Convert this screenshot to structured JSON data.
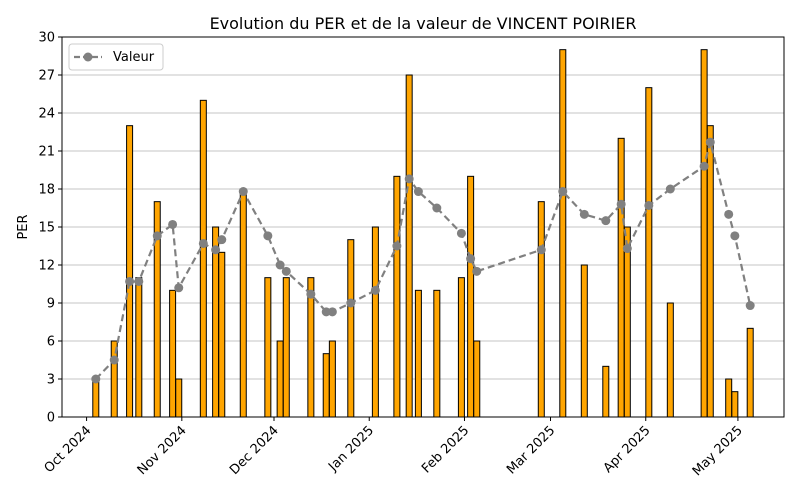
{
  "chart_data": {
    "type": "bar+line",
    "title": "Evolution du PER et de la valeur de VINCENT POIRIER",
    "xlabel": "",
    "ylabel": "PER",
    "ylim": [
      0,
      30
    ],
    "yticks": [
      0,
      3,
      6,
      9,
      12,
      15,
      18,
      21,
      24,
      27,
      30
    ],
    "xlim": [
      "2024-09-23",
      "2025-05-16"
    ],
    "xticks": [
      {
        "date": "2024-10-01",
        "label": "Oct 2024"
      },
      {
        "date": "2024-11-01",
        "label": "Nov 2024"
      },
      {
        "date": "2024-12-01",
        "label": "Dec 2024"
      },
      {
        "date": "2025-01-01",
        "label": "Jan 2025"
      },
      {
        "date": "2025-02-01",
        "label": "Feb 2025"
      },
      {
        "date": "2025-03-01",
        "label": "Mar 2025"
      },
      {
        "date": "2025-04-01",
        "label": "Apr 2025"
      },
      {
        "date": "2025-05-01",
        "label": "May 2025"
      }
    ],
    "grid": "horizontal",
    "legend_position": "top-left",
    "bar_color": "#FFA500",
    "line_color": "#808080",
    "bars": [
      {
        "date": "2024-10-04",
        "per": 3
      },
      {
        "date": "2024-10-10",
        "per": 6
      },
      {
        "date": "2024-10-15",
        "per": 23
      },
      {
        "date": "2024-10-18",
        "per": 11
      },
      {
        "date": "2024-10-24",
        "per": 17
      },
      {
        "date": "2024-10-29",
        "per": 10
      },
      {
        "date": "2024-10-31",
        "per": 3
      },
      {
        "date": "2024-11-08",
        "per": 25
      },
      {
        "date": "2024-11-12",
        "per": 15
      },
      {
        "date": "2024-11-14",
        "per": 13
      },
      {
        "date": "2024-11-21",
        "per": 18
      },
      {
        "date": "2024-11-29",
        "per": 11
      },
      {
        "date": "2024-12-03",
        "per": 6
      },
      {
        "date": "2024-12-05",
        "per": 11
      },
      {
        "date": "2024-12-13",
        "per": 11
      },
      {
        "date": "2024-12-18",
        "per": 5
      },
      {
        "date": "2024-12-20",
        "per": 6
      },
      {
        "date": "2024-12-26",
        "per": 14
      },
      {
        "date": "2025-01-03",
        "per": 15
      },
      {
        "date": "2025-01-10",
        "per": 19
      },
      {
        "date": "2025-01-14",
        "per": 27
      },
      {
        "date": "2025-01-17",
        "per": 10
      },
      {
        "date": "2025-01-23",
        "per": 10
      },
      {
        "date": "2025-01-31",
        "per": 11
      },
      {
        "date": "2025-02-03",
        "per": 19
      },
      {
        "date": "2025-02-05",
        "per": 6
      },
      {
        "date": "2025-02-26",
        "per": 17
      },
      {
        "date": "2025-03-05",
        "per": 29
      },
      {
        "date": "2025-03-12",
        "per": 12
      },
      {
        "date": "2025-03-19",
        "per": 4
      },
      {
        "date": "2025-03-24",
        "per": 22
      },
      {
        "date": "2025-03-26",
        "per": 15
      },
      {
        "date": "2025-04-02",
        "per": 26
      },
      {
        "date": "2025-04-09",
        "per": 9
      },
      {
        "date": "2025-04-20",
        "per": 29
      },
      {
        "date": "2025-04-22",
        "per": 23
      },
      {
        "date": "2025-04-28",
        "per": 3
      },
      {
        "date": "2025-04-30",
        "per": 2
      },
      {
        "date": "2025-05-05",
        "per": 7
      }
    ],
    "series": [
      {
        "name": "Valeur",
        "style": "dashed-line-circle-markers",
        "points": [
          {
            "date": "2024-10-04",
            "y": 3.0
          },
          {
            "date": "2024-10-10",
            "y": 4.5
          },
          {
            "date": "2024-10-15",
            "y": 10.7
          },
          {
            "date": "2024-10-18",
            "y": 10.7
          },
          {
            "date": "2024-10-24",
            "y": 14.3
          },
          {
            "date": "2024-10-29",
            "y": 15.2
          },
          {
            "date": "2024-10-31",
            "y": 10.2
          },
          {
            "date": "2024-11-08",
            "y": 13.7
          },
          {
            "date": "2024-11-12",
            "y": 13.2
          },
          {
            "date": "2024-11-14",
            "y": 14.0
          },
          {
            "date": "2024-11-21",
            "y": 17.8
          },
          {
            "date": "2024-11-29",
            "y": 14.3
          },
          {
            "date": "2024-12-03",
            "y": 12.0
          },
          {
            "date": "2024-12-05",
            "y": 11.5
          },
          {
            "date": "2024-12-13",
            "y": 9.7
          },
          {
            "date": "2024-12-18",
            "y": 8.3
          },
          {
            "date": "2024-12-20",
            "y": 8.3
          },
          {
            "date": "2024-12-26",
            "y": 9.0
          },
          {
            "date": "2025-01-03",
            "y": 10.0
          },
          {
            "date": "2025-01-10",
            "y": 13.5
          },
          {
            "date": "2025-01-14",
            "y": 18.8
          },
          {
            "date": "2025-01-17",
            "y": 17.8
          },
          {
            "date": "2025-01-23",
            "y": 16.5
          },
          {
            "date": "2025-01-31",
            "y": 14.5
          },
          {
            "date": "2025-02-03",
            "y": 12.5
          },
          {
            "date": "2025-02-05",
            "y": 11.5
          },
          {
            "date": "2025-02-26",
            "y": 13.2
          },
          {
            "date": "2025-03-05",
            "y": 17.8
          },
          {
            "date": "2025-03-12",
            "y": 16.0
          },
          {
            "date": "2025-03-19",
            "y": 15.5
          },
          {
            "date": "2025-03-24",
            "y": 16.8
          },
          {
            "date": "2025-03-26",
            "y": 13.3
          },
          {
            "date": "2025-04-02",
            "y": 16.7
          },
          {
            "date": "2025-04-09",
            "y": 18.0
          },
          {
            "date": "2025-04-20",
            "y": 19.8
          },
          {
            "date": "2025-04-22",
            "y": 21.7
          },
          {
            "date": "2025-04-28",
            "y": 16.0
          },
          {
            "date": "2025-04-30",
            "y": 14.3
          },
          {
            "date": "2025-05-05",
            "y": 8.8
          }
        ]
      }
    ]
  }
}
